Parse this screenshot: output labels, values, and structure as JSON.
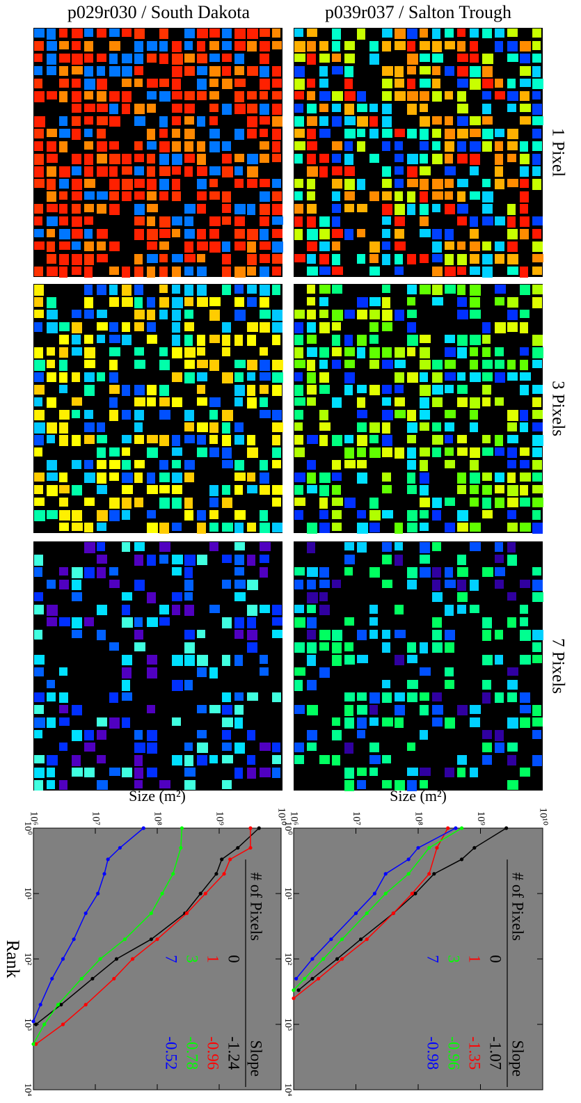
{
  "columns": [
    "p029r030 / South Dakota",
    "p039r037 / Salton Trough"
  ],
  "rows": [
    "1 Pixel",
    "3 Pixels",
    "7 Pixels"
  ],
  "chart_data": [
    {
      "type": "line",
      "log_x": true,
      "log_y": true,
      "xlabel": "Rank",
      "ylabel": "Size (m²)",
      "legend_title": "# of Pixels",
      "legend_value_title": "Slope",
      "xlim": [
        1,
        10000
      ],
      "ylim": [
        1000000,
        10000000000
      ],
      "xticks": [
        {
          "value": 1,
          "label": "10⁰"
        },
        {
          "value": 10,
          "label": "10¹"
        },
        {
          "value": 100,
          "label": "10²"
        },
        {
          "value": 1000,
          "label": "10³"
        },
        {
          "value": 10000,
          "label": "10⁴"
        }
      ],
      "yticks": [
        {
          "value": 1000000,
          "label": "10⁶"
        },
        {
          "value": 10000000,
          "label": "10⁷"
        },
        {
          "value": 100000000,
          "label": "10⁸"
        },
        {
          "value": 1000000000,
          "label": "10⁹"
        },
        {
          "value": 10000000000,
          "label": "10¹⁰"
        }
      ],
      "series": [
        {
          "name": "0",
          "color": "#000000",
          "slope": -1.24,
          "x": [
            1,
            2,
            3,
            5,
            10,
            20,
            50,
            100,
            200,
            500,
            1000
          ],
          "values": [
            4400000000,
            2000000000,
            1100000000,
            900000000,
            500000000,
            280000000,
            80000000,
            22000000,
            9000000,
            2800000,
            1100000
          ]
        },
        {
          "name": "1",
          "color": "#ff0000",
          "slope": -0.96,
          "x": [
            1,
            2,
            3,
            5,
            10,
            20,
            50,
            100,
            200,
            500,
            1000,
            2000
          ],
          "values": [
            3200000000,
            3200000000,
            1500000000,
            1200000000,
            600000000,
            300000000,
            100000000,
            40000000,
            20000000,
            7000000,
            3000000,
            1100000
          ]
        },
        {
          "name": "3",
          "color": "#00ff00",
          "slope": -0.78,
          "x": [
            1,
            2,
            5,
            10,
            20,
            50,
            100,
            200,
            500,
            1000,
            2000
          ],
          "values": [
            250000000,
            240000000,
            180000000,
            120000000,
            80000000,
            30000000,
            12000000,
            6000000,
            2500000,
            1500000,
            1000000
          ]
        },
        {
          "name": "7",
          "color": "#0000ff",
          "slope": -0.52,
          "x": [
            1,
            2,
            3,
            5,
            10,
            20,
            50,
            100,
            200,
            500,
            900
          ],
          "values": [
            60000000,
            25000000,
            16000000,
            14000000,
            11000000,
            7000000,
            4500000,
            3000000,
            2000000,
            1300000,
            1000000
          ]
        }
      ]
    },
    {
      "type": "line",
      "log_x": true,
      "log_y": true,
      "ylabel": "Size (m²)",
      "legend_title": "# of Pixels",
      "legend_value_title": "Slope",
      "xlim": [
        1,
        10000
      ],
      "ylim": [
        1000000,
        10000000000
      ],
      "xticks": [
        {
          "value": 1,
          "label": "10⁰"
        },
        {
          "value": 10,
          "label": "10¹"
        },
        {
          "value": 100,
          "label": "10²"
        },
        {
          "value": 1000,
          "label": "10³"
        },
        {
          "value": 10000,
          "label": "10⁴"
        }
      ],
      "yticks": [
        {
          "value": 1000000,
          "label": "10⁶"
        },
        {
          "value": 10000000,
          "label": "10⁷"
        },
        {
          "value": 100000000,
          "label": "10⁸"
        },
        {
          "value": 1000000000,
          "label": "10⁹"
        },
        {
          "value": 10000000000,
          "label": "10¹⁰"
        }
      ],
      "series": [
        {
          "name": "0",
          "color": "#000000",
          "slope": -1.07,
          "x": [
            1,
            2,
            3,
            5,
            10,
            20,
            50,
            100,
            200,
            300
          ],
          "values": [
            2600000000,
            800000000,
            500000000,
            180000000,
            90000000,
            40000000,
            12000000,
            5000000,
            2000000,
            1200000
          ]
        },
        {
          "name": "1",
          "color": "#ff0000",
          "slope": -1.35,
          "x": [
            1,
            2,
            5,
            10,
            20,
            50,
            100,
            200,
            400
          ],
          "values": [
            300000000,
            200000000,
            150000000,
            80000000,
            40000000,
            15000000,
            6000000,
            2500000,
            1000000
          ]
        },
        {
          "name": "3",
          "color": "#00ff00",
          "slope": -0.96,
          "x": [
            1,
            2,
            5,
            10,
            20,
            50,
            100,
            200,
            300
          ],
          "values": [
            500000000,
            150000000,
            70000000,
            30000000,
            15000000,
            6000000,
            3000000,
            1500000,
            1000000
          ]
        },
        {
          "name": "7",
          "color": "#0000ff",
          "slope": -0.98,
          "x": [
            1,
            2,
            3,
            5,
            10,
            20,
            50,
            100,
            200
          ],
          "values": [
            400000000,
            100000000,
            70000000,
            30000000,
            20000000,
            10000000,
            4000000,
            2000000,
            1100000
          ]
        }
      ]
    }
  ]
}
